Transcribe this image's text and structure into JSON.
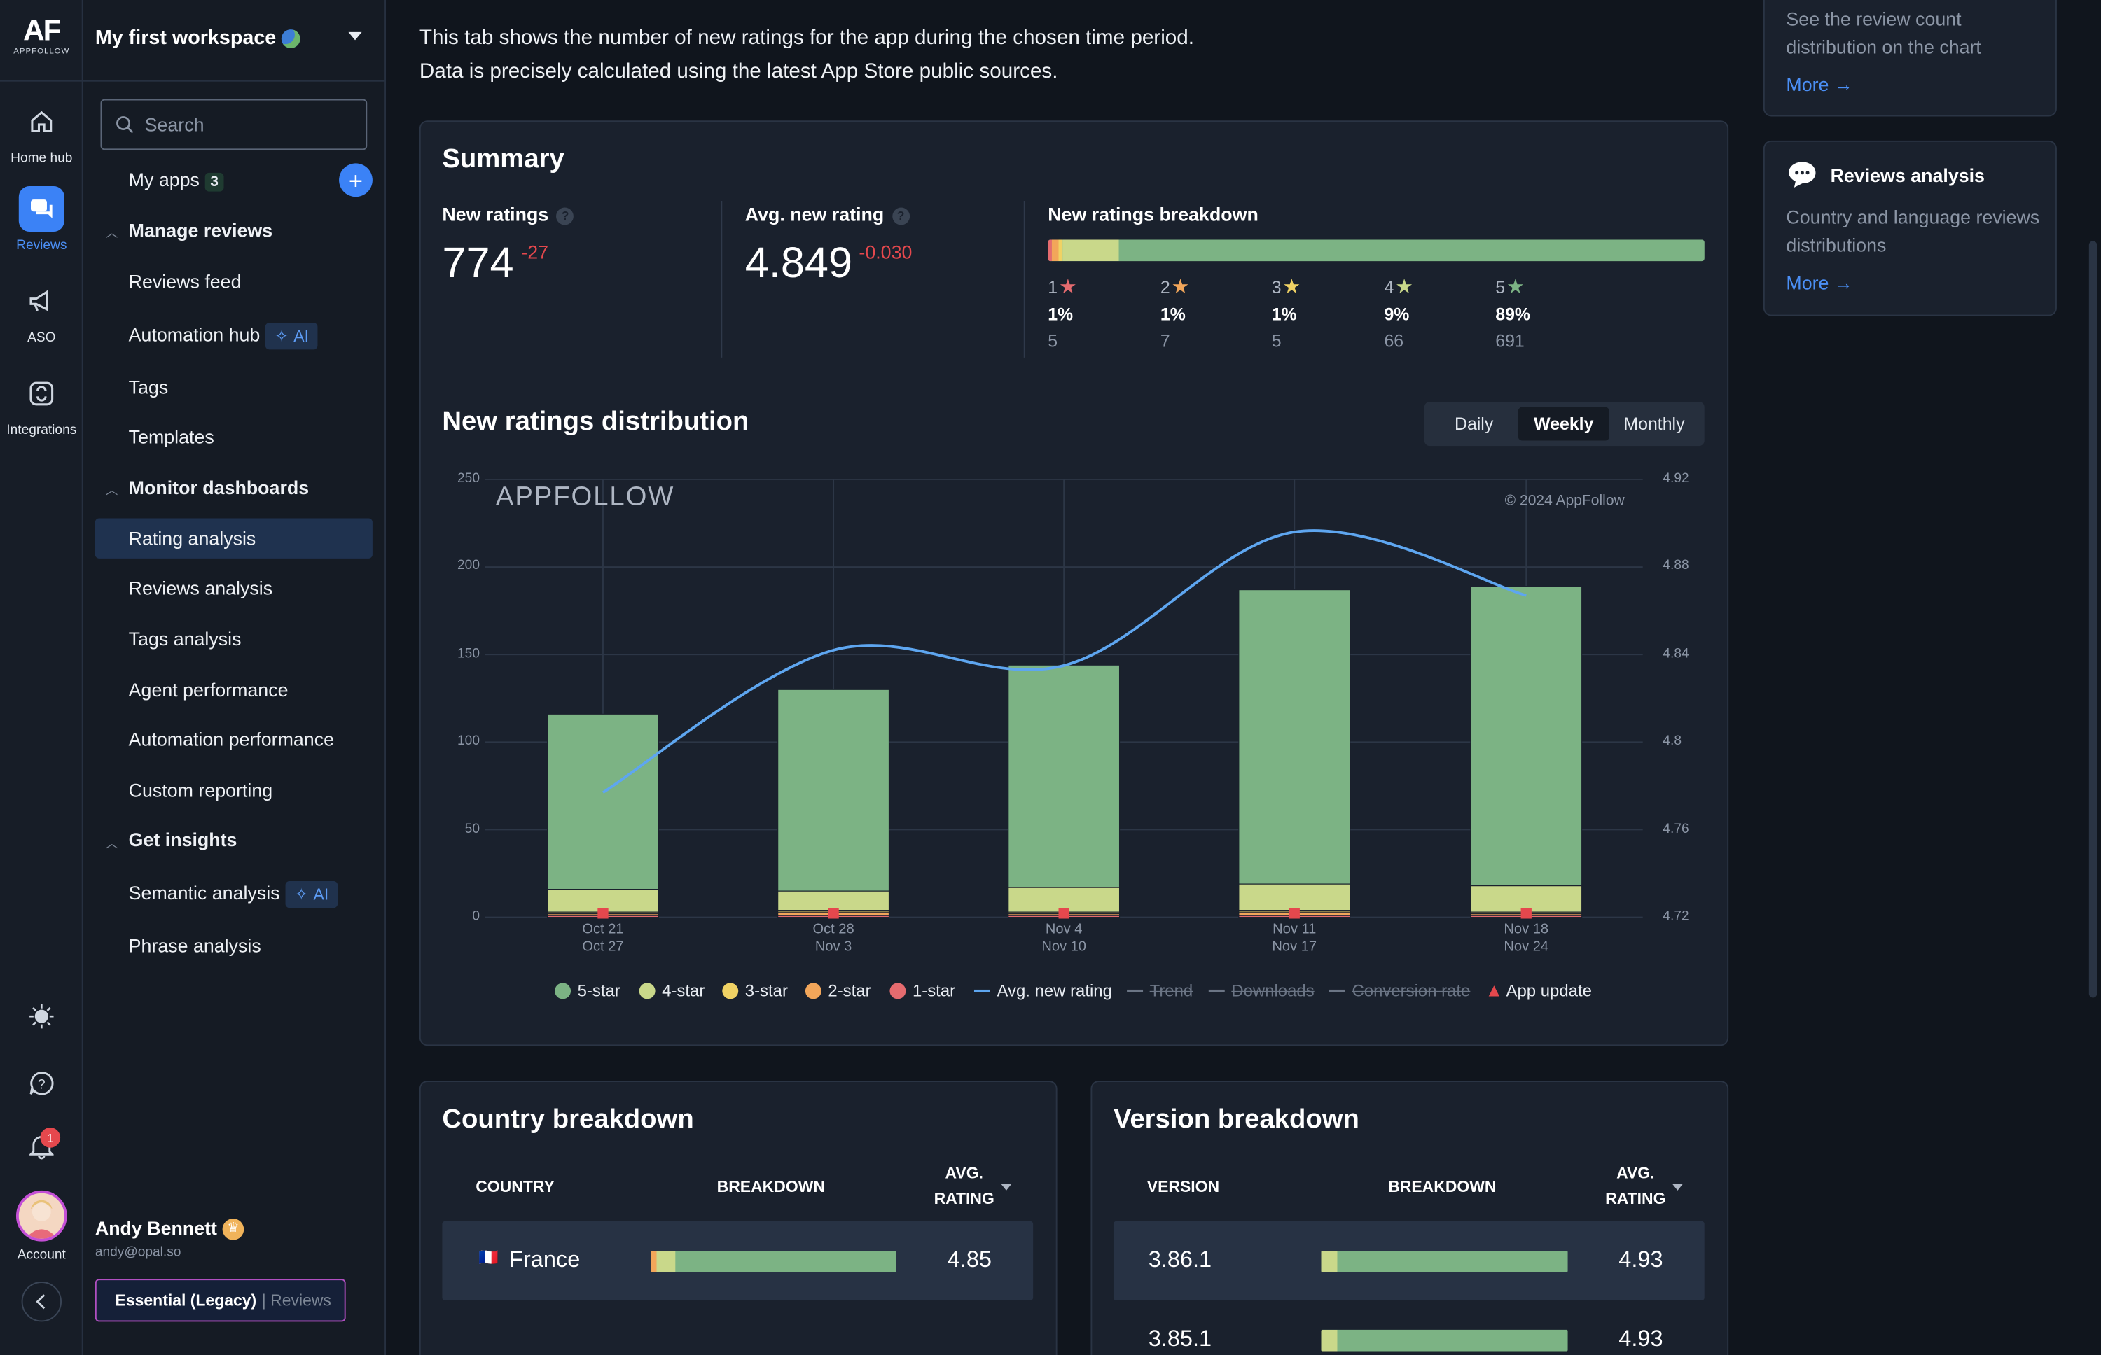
{
  "logo": {
    "mark": "AF",
    "sub": "APPFOLLOW"
  },
  "rail": {
    "items": [
      {
        "label": "Home hub"
      },
      {
        "label": "Reviews"
      },
      {
        "label": "ASO"
      },
      {
        "label": "Integrations"
      }
    ],
    "account": "Account",
    "notif_count": "1"
  },
  "sidebar": {
    "workspace": "My first workspace",
    "search_placeholder": "Search",
    "my_apps": "My apps",
    "my_apps_count": "3",
    "sections": {
      "manage": "Manage reviews",
      "monitor": "Monitor dashboards",
      "insights": "Get insights"
    },
    "items": {
      "reviews_feed": "Reviews feed",
      "automation_hub": "Automation hub",
      "tags": "Tags",
      "templates": "Templates",
      "rating_analysis": "Rating analysis",
      "reviews_analysis": "Reviews analysis",
      "tags_analysis": "Tags analysis",
      "agent_performance": "Agent performance",
      "automation_performance": "Automation performance",
      "custom_reporting": "Custom reporting",
      "semantic_analysis": "Semantic analysis",
      "phrase_analysis": "Phrase analysis"
    },
    "ai_label": "AI",
    "user": {
      "name": "Andy Bennett",
      "email": "andy@opal.so",
      "plan": "Essential (Legacy)",
      "plan_sub": "| Reviews"
    }
  },
  "intro": {
    "line1": "This tab shows the number of new ratings for the app during the chosen time period.",
    "line2": "Data is precisely calculated using the latest App Store public sources."
  },
  "summary": {
    "title": "Summary",
    "new_ratings_label": "New ratings",
    "new_ratings": "774",
    "new_ratings_delta": "-27",
    "avg_label": "Avg. new rating",
    "avg": "4.849",
    "avg_delta": "-0.030",
    "breakdown_label": "New ratings breakdown",
    "breakdown": [
      {
        "star": "1",
        "pct": "1%",
        "count": "5",
        "color": "#e56b6f"
      },
      {
        "star": "2",
        "pct": "1%",
        "count": "7",
        "color": "#f2a65a"
      },
      {
        "star": "3",
        "pct": "1%",
        "count": "5",
        "color": "#f0d264"
      },
      {
        "star": "4",
        "pct": "9%",
        "count": "66",
        "color": "#c9d88a"
      },
      {
        "star": "5",
        "pct": "89%",
        "count": "691",
        "color": "#7cb384"
      }
    ]
  },
  "distribution": {
    "title": "New ratings distribution",
    "periods": [
      "Daily",
      "Weekly",
      "Monthly"
    ],
    "selected": "Weekly",
    "watermark": "APPFOLLOW",
    "copyright": "© 2024 AppFollow"
  },
  "chart_data": {
    "type": "bar",
    "title": "New ratings distribution",
    "categories": [
      [
        "Oct 21",
        "Oct 27"
      ],
      [
        "Oct 28",
        "Nov 3"
      ],
      [
        "Nov 4",
        "Nov 10"
      ],
      [
        "Nov 11",
        "Nov 17"
      ],
      [
        "Nov 18",
        "Nov 24"
      ]
    ],
    "ylim": [
      0,
      250
    ],
    "yticks": [
      0,
      50,
      100,
      150,
      200,
      250
    ],
    "y2lim": [
      4.72,
      4.92
    ],
    "y2ticks": [
      "4.72",
      "4.76",
      "4.8",
      "4.84",
      "4.88",
      "4.92"
    ],
    "series": [
      {
        "name": "1-star",
        "color": "#e56b6f",
        "values": [
          1,
          1,
          1,
          1,
          1
        ]
      },
      {
        "name": "2-star",
        "color": "#f2a65a",
        "values": [
          1,
          2,
          1,
          2,
          1
        ]
      },
      {
        "name": "3-star",
        "color": "#f0d264",
        "values": [
          1,
          1,
          1,
          1,
          1
        ]
      },
      {
        "name": "4-star",
        "color": "#c9d88a",
        "values": [
          13,
          11,
          14,
          15,
          15
        ]
      },
      {
        "name": "5-star",
        "color": "#7cb384",
        "values": [
          100,
          115,
          127,
          168,
          171
        ]
      }
    ],
    "line": {
      "name": "Avg. new rating",
      "color": "#5ea6f0",
      "values": [
        4.777,
        4.842,
        4.835,
        4.896,
        4.867
      ]
    },
    "app_updates": [
      0,
      1,
      2,
      3,
      4
    ],
    "legend": [
      {
        "name": "5-star",
        "kind": "dot",
        "color": "#7cb384"
      },
      {
        "name": "4-star",
        "kind": "dot",
        "color": "#c9d88a"
      },
      {
        "name": "3-star",
        "kind": "dot",
        "color": "#f0d264"
      },
      {
        "name": "2-star",
        "kind": "dot",
        "color": "#f2a65a"
      },
      {
        "name": "1-star",
        "kind": "dot",
        "color": "#e56b6f"
      },
      {
        "name": "Avg. new rating",
        "kind": "line",
        "color": "#5ea6f0"
      },
      {
        "name": "Trend",
        "kind": "off"
      },
      {
        "name": "Downloads",
        "kind": "off"
      },
      {
        "name": "Conversion rate",
        "kind": "off"
      },
      {
        "name": "App update",
        "kind": "tri",
        "color": "#e5484d"
      }
    ]
  },
  "right": {
    "card1_text": "See the review count distribution on the chart",
    "more": "More →",
    "card2_title": "Reviews analysis",
    "card2_text": "Country and language reviews distributions"
  },
  "country": {
    "title": "Country breakdown",
    "cols": {
      "c1": "COUNTRY",
      "c2": "BREAKDOWN",
      "c3a": "AVG.",
      "c3b": "RATING"
    },
    "rows": [
      {
        "flag": "🇫🇷",
        "name": "France",
        "rating": "4.85"
      }
    ]
  },
  "version": {
    "title": "Version breakdown",
    "cols": {
      "c1": "VERSION",
      "c2": "BREAKDOWN",
      "c3a": "AVG.",
      "c3b": "RATING"
    },
    "rows": [
      {
        "name": "3.86.1",
        "rating": "4.93"
      },
      {
        "name": "3.85.1",
        "rating": "4.93"
      }
    ]
  }
}
